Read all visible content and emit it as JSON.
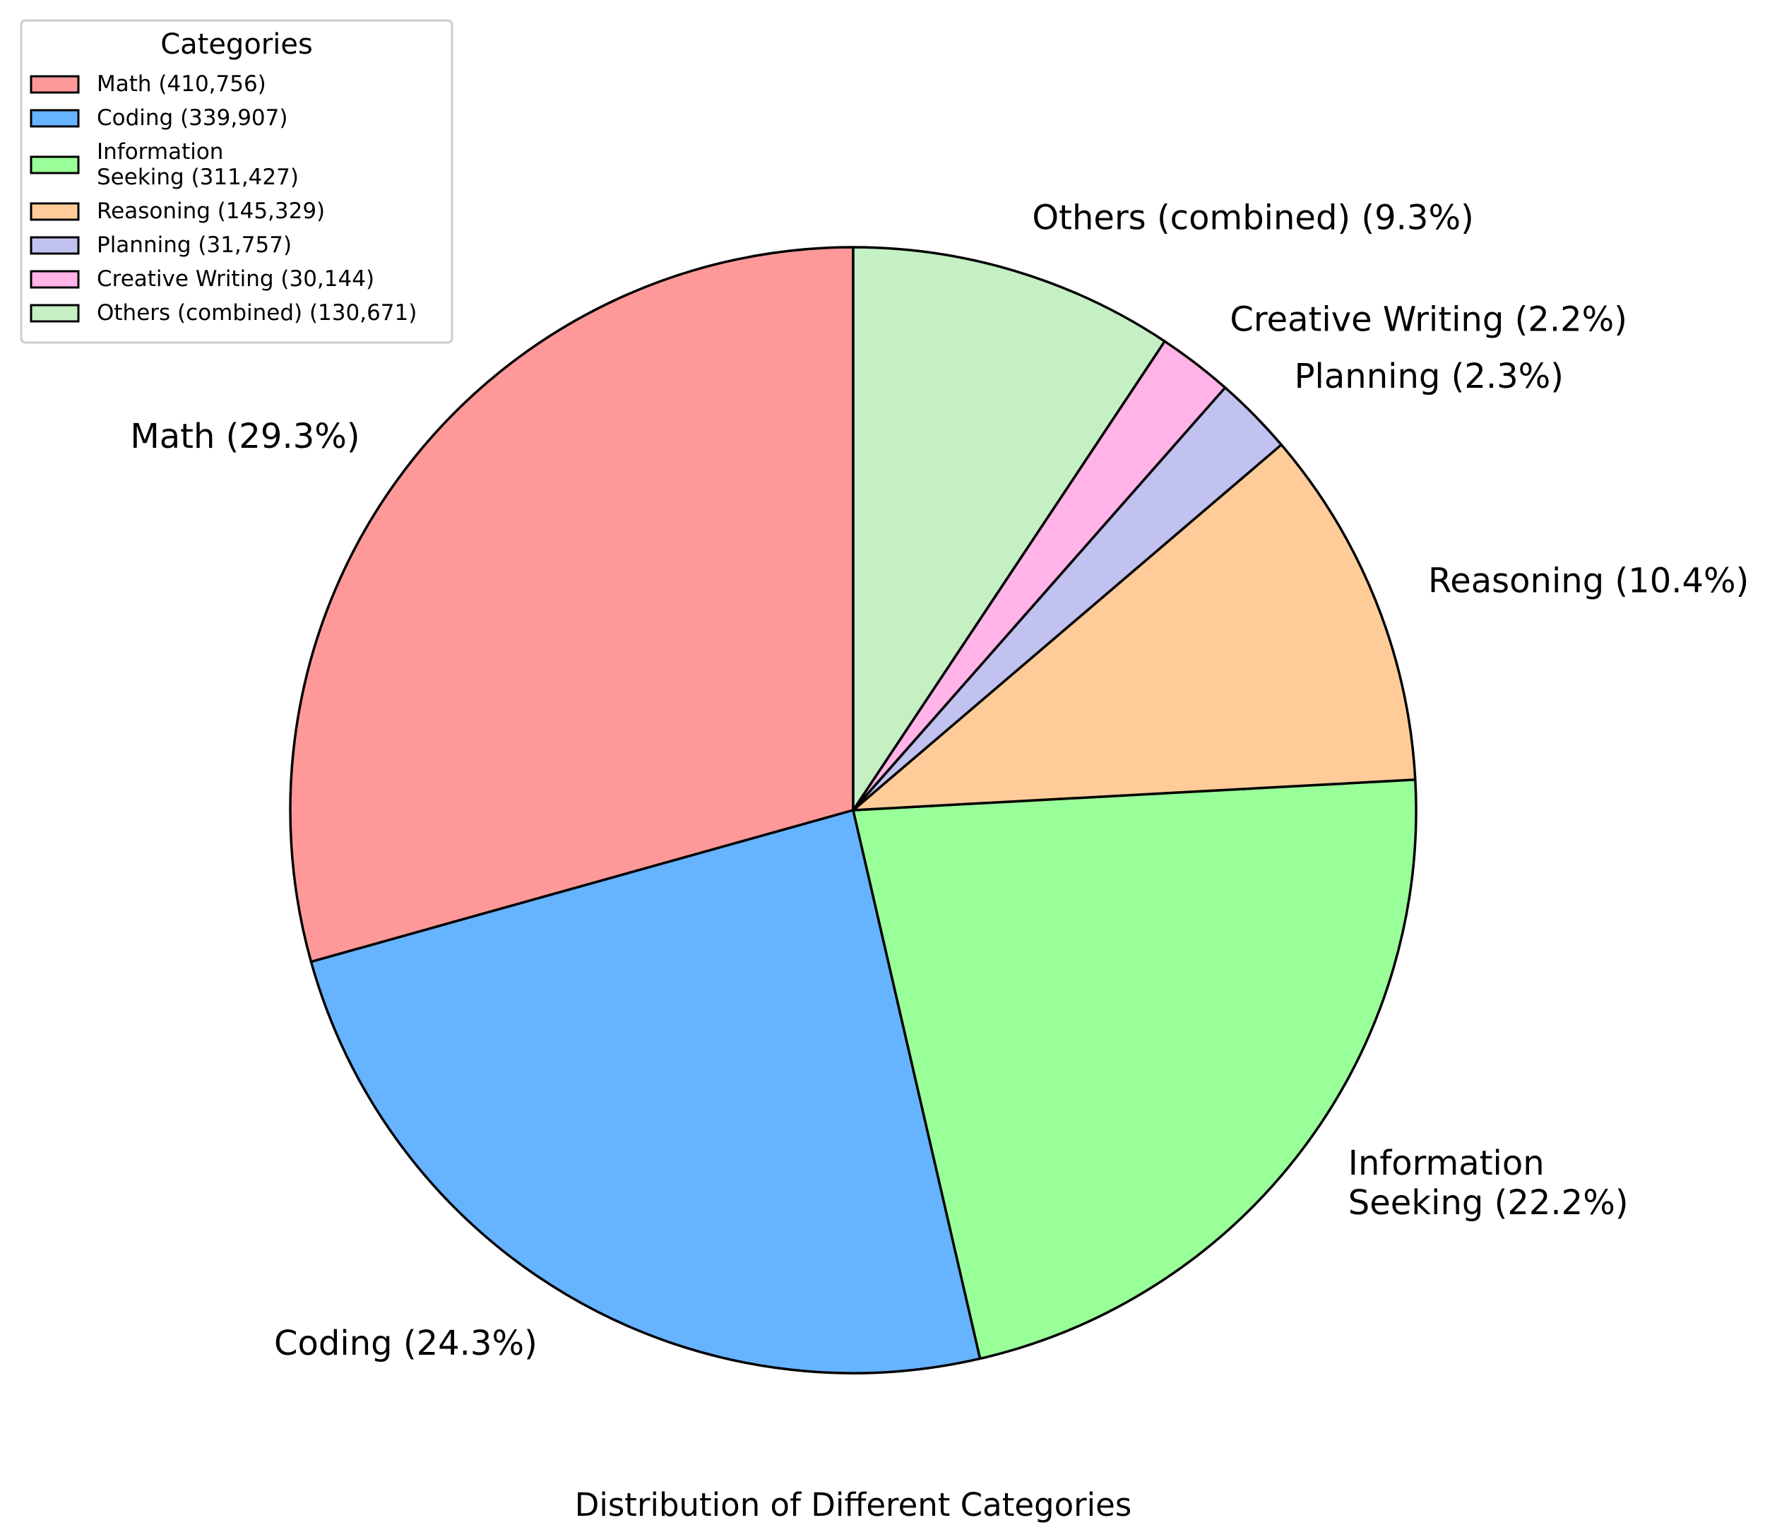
{
  "chart_data": {
    "type": "pie",
    "title": "Distribution of Different Categories",
    "start_angle_deg": 90,
    "direction": "counterclockwise",
    "legend": {
      "title": "Categories",
      "placement": "top-left"
    },
    "slices": [
      {
        "legend_lines": [
          "Math (410,756)"
        ],
        "label_lines": [
          "Math (29.3%)"
        ],
        "value": 410756,
        "percent": 29.3,
        "color": "#ff9999"
      },
      {
        "legend_lines": [
          "Coding (339,907)"
        ],
        "label_lines": [
          "Coding (24.3%)"
        ],
        "value": 339907,
        "percent": 24.3,
        "color": "#66b3ff"
      },
      {
        "legend_lines": [
          "Information",
          "Seeking (311,427)"
        ],
        "label_lines": [
          "Information",
          "Seeking (22.2%)"
        ],
        "value": 311427,
        "percent": 22.2,
        "color": "#99ff99"
      },
      {
        "legend_lines": [
          "Reasoning (145,329)"
        ],
        "label_lines": [
          "Reasoning (10.4%)"
        ],
        "value": 145329,
        "percent": 10.4,
        "color": "#ffcc99"
      },
      {
        "legend_lines": [
          "Planning (31,757)"
        ],
        "label_lines": [
          "Planning (2.3%)"
        ],
        "value": 31757,
        "percent": 2.3,
        "color": "#c2c2f0"
      },
      {
        "legend_lines": [
          "Creative Writing (30,144)"
        ],
        "label_lines": [
          "Creative Writing (2.2%)"
        ],
        "value": 30144,
        "percent": 2.2,
        "color": "#ffb3e6"
      },
      {
        "legend_lines": [
          "Others (combined) (130,671)"
        ],
        "label_lines": [
          "Others (combined) (9.3%)"
        ],
        "value": 130671,
        "percent": 9.3,
        "color": "#c4f0c4"
      }
    ]
  }
}
